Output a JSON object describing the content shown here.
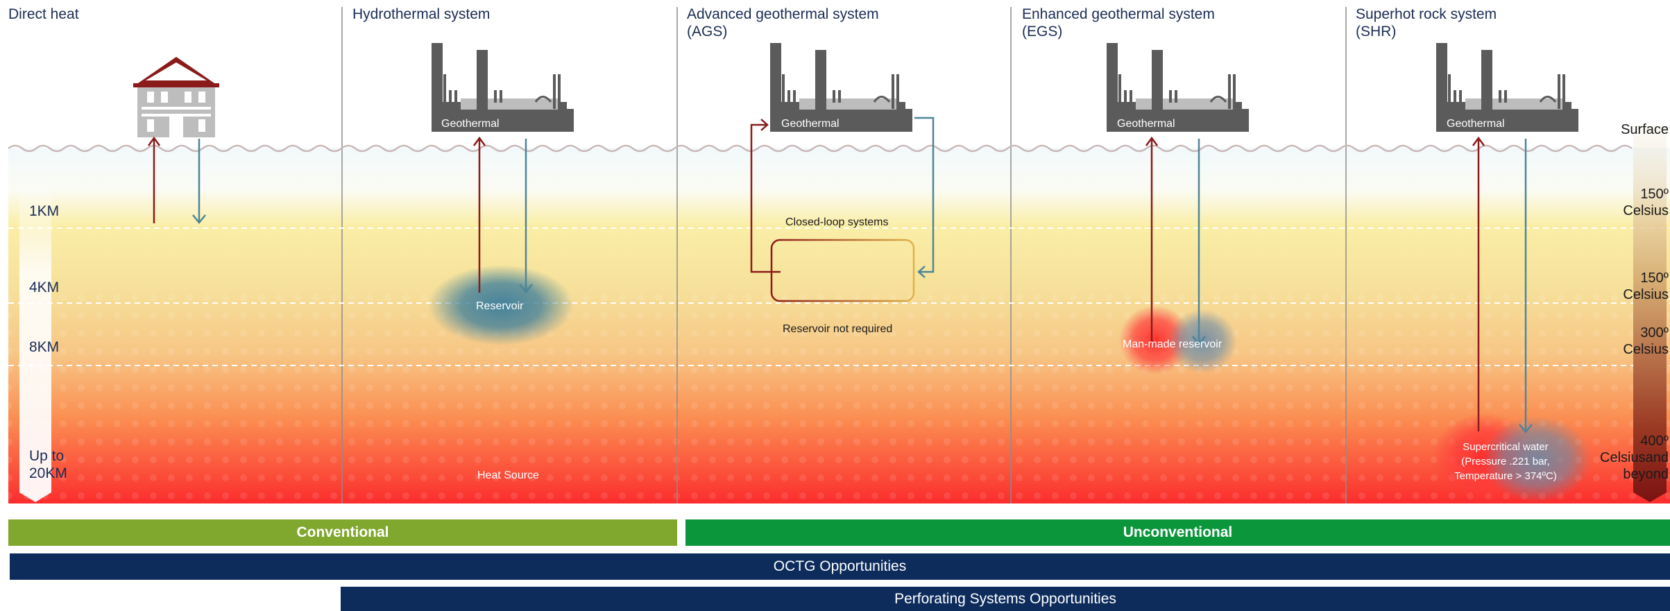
{
  "columns": [
    {
      "title": "Direct heat"
    },
    {
      "title": "Hydrothermal system"
    },
    {
      "title": "Advanced geothermal system (AGS)"
    },
    {
      "title": "Enhanced geothermal system (EGS)"
    },
    {
      "title": "Superhot rock system (SHR)"
    }
  ],
  "plant_label": "Geothermal",
  "surface_label": "Surface",
  "depths": [
    "1KM",
    "4KM",
    "8KM",
    "Up to 20KM"
  ],
  "temperatures": [
    "150º Celsius",
    "150º Celsius",
    "300º Celsius",
    "400º Celsiusand beyond"
  ],
  "annotations": {
    "reservoir": "Reservoir",
    "heat_source": "Heat Source",
    "closed_loop": "Closed-loop systems",
    "reservoir_not_required": "Reservoir not required",
    "man_made_reservoir": "Man-made reservoir",
    "supercritical": "Supercritical water (Pressure .221 bar, Temperature > 374ºC)"
  },
  "bands": {
    "conventional": "Conventional",
    "unconventional": "Unconventional",
    "octg": "OCTG Opportunities",
    "perforating": "Perforating Systems Opportunities"
  },
  "colors": {
    "navy": "#0d2c5c",
    "olive": "#80a72e",
    "green": "#0c963c",
    "arrow_red": "#8b1a1a",
    "arrow_blue": "#4d8597",
    "building": "#5b5b5b",
    "roof": "#8b1a1a"
  }
}
